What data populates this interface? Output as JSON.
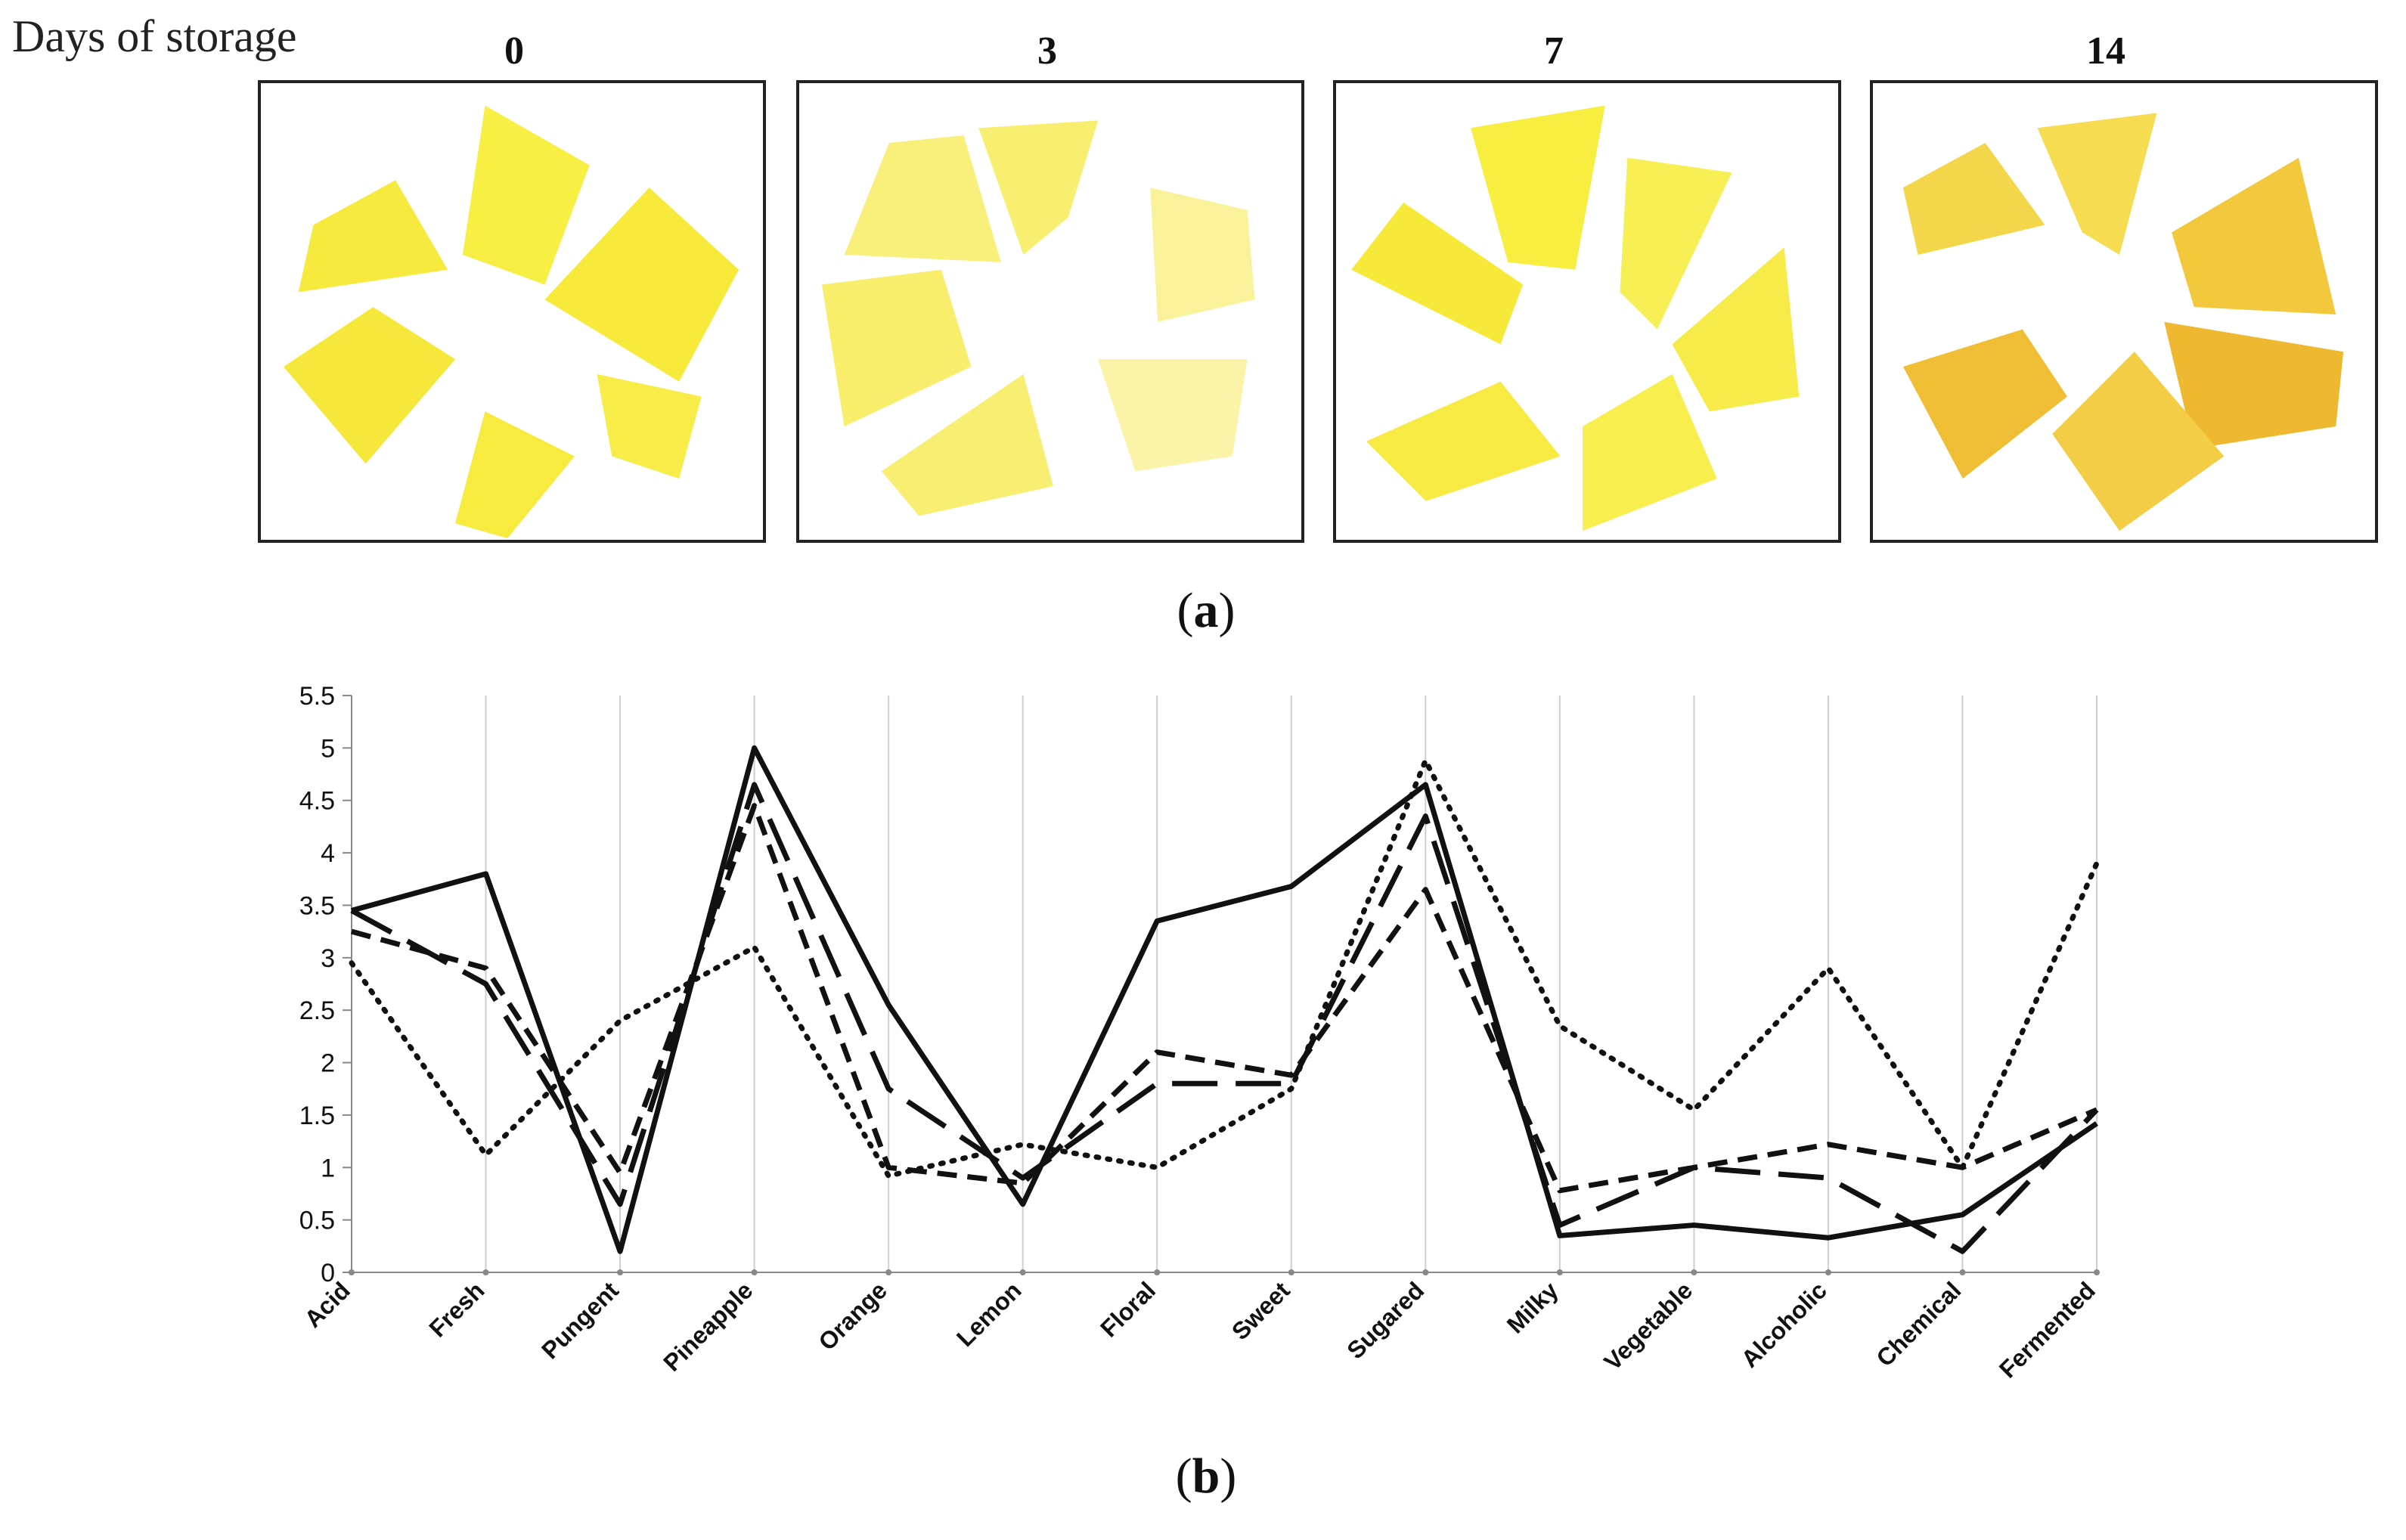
{
  "panel_a": {
    "row_label": "Days of storage",
    "days": [
      "0",
      "3",
      "7",
      "14"
    ],
    "label": "a"
  },
  "panel_b": {
    "label": "b"
  },
  "colors": {
    "line": "#111111",
    "grid": "#cfcfcf",
    "fresh_yellow": "#f7ec3c",
    "aged_yellow": "#f2c23a"
  },
  "chart_data": {
    "type": "line",
    "categories": [
      "Acid",
      "Fresh",
      "Pungent",
      "Pineapple",
      "Orange",
      "Lemon",
      "Floral",
      "Sweet",
      "Sugared",
      "Milky",
      "Vegetable",
      "Alcoholic",
      "Chemical",
      "Fermented"
    ],
    "ylim": [
      0,
      5.5
    ],
    "yticks": [
      0,
      0.5,
      1,
      1.5,
      2,
      2.5,
      3,
      3.5,
      4,
      4.5,
      5,
      5.5
    ],
    "grid": "vertical",
    "legend": "none",
    "series": [
      {
        "style": "solid",
        "values": [
          3.45,
          3.8,
          0.2,
          5.0,
          2.55,
          0.65,
          3.35,
          3.68,
          4.65,
          0.35,
          0.45,
          0.33,
          0.55,
          1.42
        ]
      },
      {
        "style": "dashed",
        "values": [
          3.25,
          2.9,
          0.95,
          4.45,
          1.0,
          0.85,
          2.1,
          1.88,
          3.65,
          0.78,
          1.0,
          1.22,
          1.0,
          1.55
        ]
      },
      {
        "style": "longdash",
        "values": [
          3.45,
          2.75,
          0.65,
          4.65,
          1.75,
          0.9,
          1.8,
          1.8,
          4.35,
          0.45,
          1.0,
          0.9,
          0.2,
          1.55
        ]
      },
      {
        "style": "dotted",
        "values": [
          2.95,
          1.12,
          2.4,
          3.1,
          0.92,
          1.22,
          1.0,
          1.75,
          4.88,
          2.35,
          1.55,
          2.9,
          1.0,
          3.9
        ]
      }
    ]
  }
}
